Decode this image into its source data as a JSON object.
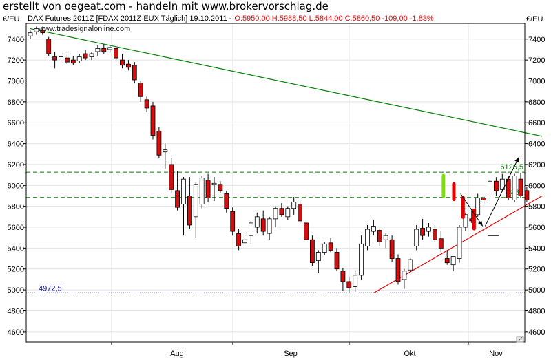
{
  "banner": "erstellt von oegeat.com - handeln mit www.brokervorschlag.de",
  "header": {
    "instrument": "DAX Futures 2011Z [FDAX 2011Z EUX  Täglich] 19.10.2011 -",
    "ohlc": "O:5950,00 H:5988,50 L:5844,00 C:5860,50 -109,00 -1,83%",
    "unit_left": "€/EU",
    "unit_right": "€/EU",
    "watermark": "www.tradesignalonline.com"
  },
  "chart_data": {
    "type": "candlestick",
    "ylim": [
      4500,
      7550
    ],
    "yticks": [
      4600,
      4800,
      5000,
      5200,
      5400,
      5600,
      5800,
      6000,
      6200,
      6400,
      6600,
      6800,
      7000,
      7200,
      7400
    ],
    "xticks": [
      "Aug",
      "Sep",
      "Okt",
      "Nov"
    ],
    "grid": true,
    "up_color": "#ffffff",
    "down_color": "#d01010",
    "candles": [
      {
        "o": 7430,
        "h": 7480,
        "l": 7400,
        "c": 7460
      },
      {
        "o": 7470,
        "h": 7520,
        "l": 7440,
        "c": 7500
      },
      {
        "o": 7480,
        "h": 7520,
        "l": 7440,
        "c": 7460
      },
      {
        "o": 7400,
        "h": 7420,
        "l": 7240,
        "c": 7260
      },
      {
        "o": 7230,
        "h": 7280,
        "l": 7120,
        "c": 7200
      },
      {
        "o": 7210,
        "h": 7260,
        "l": 7180,
        "c": 7230
      },
      {
        "o": 7220,
        "h": 7260,
        "l": 7160,
        "c": 7180
      },
      {
        "o": 7200,
        "h": 7240,
        "l": 7150,
        "c": 7170
      },
      {
        "o": 7190,
        "h": 7260,
        "l": 7170,
        "c": 7230
      },
      {
        "o": 7260,
        "h": 7300,
        "l": 7200,
        "c": 7220
      },
      {
        "o": 7230,
        "h": 7280,
        "l": 7200,
        "c": 7260
      },
      {
        "o": 7280,
        "h": 7340,
        "l": 7240,
        "c": 7310
      },
      {
        "o": 7310,
        "h": 7350,
        "l": 7260,
        "c": 7280
      },
      {
        "o": 7300,
        "h": 7340,
        "l": 7270,
        "c": 7320
      },
      {
        "o": 7310,
        "h": 7330,
        "l": 7200,
        "c": 7220
      },
      {
        "o": 7200,
        "h": 7260,
        "l": 7120,
        "c": 7150
      },
      {
        "o": 7160,
        "h": 7200,
        "l": 7100,
        "c": 7130
      },
      {
        "o": 7150,
        "h": 7180,
        "l": 6980,
        "c": 7010
      },
      {
        "o": 6980,
        "h": 7000,
        "l": 6800,
        "c": 6850
      },
      {
        "o": 6820,
        "h": 6850,
        "l": 6700,
        "c": 6740
      },
      {
        "o": 6760,
        "h": 6800,
        "l": 6440,
        "c": 6480
      },
      {
        "o": 6520,
        "h": 6560,
        "l": 6260,
        "c": 6290
      },
      {
        "o": 6320,
        "h": 6400,
        "l": 6160,
        "c": 6340
      },
      {
        "o": 6200,
        "h": 6260,
        "l": 5930,
        "c": 5960
      },
      {
        "o": 5950,
        "h": 6140,
        "l": 5760,
        "c": 5790
      },
      {
        "o": 5820,
        "h": 6080,
        "l": 5520,
        "c": 6060
      },
      {
        "o": 5900,
        "h": 6080,
        "l": 5580,
        "c": 5620
      },
      {
        "o": 5700,
        "h": 6030,
        "l": 5500,
        "c": 6010
      },
      {
        "o": 5820,
        "h": 6090,
        "l": 5780,
        "c": 6070
      },
      {
        "o": 6050,
        "h": 6110,
        "l": 5840,
        "c": 5880
      },
      {
        "o": 6010,
        "h": 6080,
        "l": 5850,
        "c": 6020
      },
      {
        "o": 6010,
        "h": 6040,
        "l": 5930,
        "c": 5950
      },
      {
        "o": 5920,
        "h": 5950,
        "l": 5740,
        "c": 5780
      },
      {
        "o": 5750,
        "h": 5790,
        "l": 5520,
        "c": 5560
      },
      {
        "o": 5540,
        "h": 5580,
        "l": 5380,
        "c": 5420
      },
      {
        "o": 5450,
        "h": 5520,
        "l": 5410,
        "c": 5480
      },
      {
        "o": 5520,
        "h": 5660,
        "l": 5440,
        "c": 5640
      },
      {
        "o": 5600,
        "h": 5740,
        "l": 5540,
        "c": 5700
      },
      {
        "o": 5680,
        "h": 5760,
        "l": 5520,
        "c": 5560
      },
      {
        "o": 5540,
        "h": 5700,
        "l": 5480,
        "c": 5680
      },
      {
        "o": 5680,
        "h": 5800,
        "l": 5600,
        "c": 5780
      },
      {
        "o": 5780,
        "h": 5830,
        "l": 5700,
        "c": 5720
      },
      {
        "o": 5700,
        "h": 5800,
        "l": 5670,
        "c": 5780
      },
      {
        "o": 5780,
        "h": 5890,
        "l": 5720,
        "c": 5840
      },
      {
        "o": 5820,
        "h": 5860,
        "l": 5640,
        "c": 5660
      },
      {
        "o": 5640,
        "h": 5660,
        "l": 5460,
        "c": 5480
      },
      {
        "o": 5480,
        "h": 5520,
        "l": 5230,
        "c": 5260
      },
      {
        "o": 5280,
        "h": 5380,
        "l": 5160,
        "c": 5360
      },
      {
        "o": 5360,
        "h": 5460,
        "l": 5330,
        "c": 5440
      },
      {
        "o": 5450,
        "h": 5500,
        "l": 5360,
        "c": 5380
      },
      {
        "o": 5360,
        "h": 5400,
        "l": 5180,
        "c": 5200
      },
      {
        "o": 5180,
        "h": 5210,
        "l": 4990,
        "c": 5080
      },
      {
        "o": 5080,
        "h": 5120,
        "l": 4970,
        "c": 5020
      },
      {
        "o": 5030,
        "h": 5180,
        "l": 4980,
        "c": 5140
      },
      {
        "o": 5140,
        "h": 5520,
        "l": 5100,
        "c": 5440
      },
      {
        "o": 5420,
        "h": 5620,
        "l": 5380,
        "c": 5580
      },
      {
        "o": 5560,
        "h": 5670,
        "l": 5520,
        "c": 5610
      },
      {
        "o": 5570,
        "h": 5590,
        "l": 5420,
        "c": 5460
      },
      {
        "o": 5480,
        "h": 5540,
        "l": 5400,
        "c": 5520
      },
      {
        "o": 5480,
        "h": 5520,
        "l": 5270,
        "c": 5300
      },
      {
        "o": 5300,
        "h": 5340,
        "l": 5050,
        "c": 5080
      },
      {
        "o": 5100,
        "h": 5200,
        "l": 5010,
        "c": 5180
      },
      {
        "o": 5190,
        "h": 5300,
        "l": 5170,
        "c": 5290
      },
      {
        "o": 5420,
        "h": 5620,
        "l": 5380,
        "c": 5580
      },
      {
        "o": 5590,
        "h": 5680,
        "l": 5480,
        "c": 5520
      },
      {
        "o": 5560,
        "h": 5640,
        "l": 5510,
        "c": 5600
      },
      {
        "o": 5580,
        "h": 5620,
        "l": 5460,
        "c": 5480
      },
      {
        "o": 5490,
        "h": 5560,
        "l": 5360,
        "c": 5400
      },
      {
        "o": 5300,
        "h": 5380,
        "l": 5240,
        "c": 5260
      },
      {
        "o": 5240,
        "h": 5300,
        "l": 5180,
        "c": 5320
      },
      {
        "o": 5300,
        "h": 5620,
        "l": 5260,
        "c": 5600
      },
      {
        "o": 5600,
        "h": 5740,
        "l": 5560,
        "c": 5720
      },
      {
        "o": 5680,
        "h": 5760,
        "l": 5640,
        "c": 5660
      },
      {
        "o": 5720,
        "h": 5920,
        "l": 5700,
        "c": 5880
      },
      {
        "o": 5880,
        "h": 5900,
        "l": 5820,
        "c": 5860
      },
      {
        "o": 5880,
        "h": 6060,
        "l": 5860,
        "c": 6040
      },
      {
        "o": 6040,
        "h": 6080,
        "l": 5900,
        "c": 5950
      },
      {
        "o": 5960,
        "h": 6110,
        "l": 5940,
        "c": 6060
      },
      {
        "o": 6060,
        "h": 6090,
        "l": 5860,
        "c": 5880
      },
      {
        "o": 5860,
        "h": 6110,
        "l": 5840,
        "c": 6090
      },
      {
        "o": 6060,
        "h": 6120,
        "l": 5880,
        "c": 5900
      },
      {
        "o": 5950,
        "h": 5990,
        "l": 5844,
        "c": 5860
      }
    ],
    "annotations": [
      {
        "kind": "hline",
        "y": 6126.5,
        "label": "6126,5",
        "color": "#008000",
        "dash": true
      },
      {
        "kind": "hline",
        "y": 5885,
        "label": "5885",
        "color": "#008000",
        "dash": true
      },
      {
        "kind": "hline",
        "y": 4972.5,
        "label": "4972,5",
        "color": "#1010a0",
        "dash": "dot"
      },
      {
        "kind": "trend",
        "from": [
          0,
          7500
        ],
        "to": [
          83.5,
          6470
        ],
        "color": "#008000"
      },
      {
        "kind": "trend",
        "from": [
          56,
          4970
        ],
        "to": [
          83.5,
          5900
        ],
        "color": "#e00000"
      },
      {
        "kind": "hseg",
        "from": [
          74.6,
          5520
        ],
        "to": [
          76.4,
          5520
        ],
        "color": "#000000"
      }
    ],
    "projection_bars": [
      {
        "bar": 67.4,
        "top": 6110,
        "bottom": 5880,
        "color": "#7be200"
      },
      {
        "bar": 69.1,
        "top": 6030,
        "bottom": 5850,
        "color": "#e00000"
      },
      {
        "bar": 70.6,
        "top": 5900,
        "bottom": 5680,
        "color": "#e00000"
      },
      {
        "bar": 72.4,
        "top": 5780,
        "bottom": 5570,
        "color": "#e00000"
      }
    ],
    "arrows": [
      {
        "from": [
          70.2,
          5920
        ],
        "to": [
          73.8,
          5610
        ],
        "color": "#000000"
      },
      {
        "from": [
          74.2,
          5610
        ],
        "to": [
          79.7,
          6270
        ],
        "color": "#000000"
      }
    ]
  }
}
